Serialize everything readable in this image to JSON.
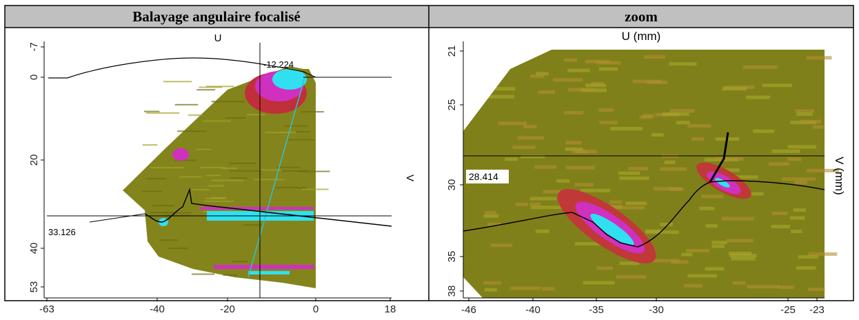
{
  "table": {
    "headers": [
      "Balayage angulaire focalisé",
      "zoom"
    ]
  },
  "left_image": {
    "x_axis_label": "U",
    "y_axis_label": "V",
    "x_ticks": [
      "-63",
      "-40",
      "-20",
      "0",
      "18"
    ],
    "y_ticks": [
      "-7",
      "0",
      "20",
      "40",
      "53"
    ],
    "cursor_labels": [
      "-12.224",
      "33.126"
    ]
  },
  "right_image": {
    "x_axis_label": "U (mm)",
    "y_axis_label": "V (mm)",
    "x_ticks": [
      "-46",
      "-40",
      "-35",
      "-30",
      "-25",
      "-23"
    ],
    "y_ticks": [
      "21",
      "25",
      "30",
      "35",
      "38"
    ],
    "cursor_label": "28.414"
  }
}
